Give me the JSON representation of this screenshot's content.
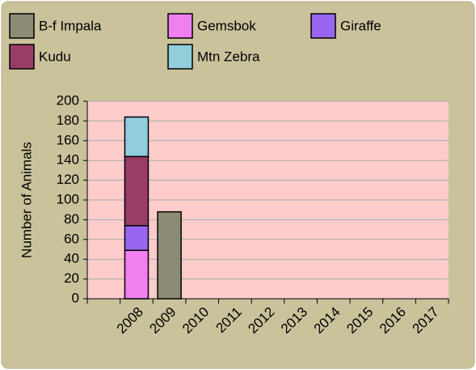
{
  "chart_data": {
    "type": "stacked_bar",
    "y_label": "Number of Animals",
    "categories": [
      null,
      "2008",
      "2009",
      "2010",
      "2011",
      "2012",
      "2013",
      "2014",
      "2015",
      "2016",
      "2017"
    ],
    "series": [
      {
        "name": "B-f Impala",
        "color": "#8c8b74",
        "values": [
          null,
          null,
          88,
          null,
          null,
          null,
          null,
          null,
          null,
          null,
          null
        ]
      },
      {
        "name": "Gemsbok",
        "color": "#f080f0",
        "values": [
          null,
          49,
          null,
          null,
          null,
          null,
          null,
          null,
          null,
          null,
          null
        ]
      },
      {
        "name": "Giraffe",
        "color": "#9966f0",
        "values": [
          null,
          25,
          null,
          null,
          null,
          null,
          null,
          null,
          null,
          null,
          null
        ]
      },
      {
        "name": "Kudu",
        "color": "#993d66",
        "values": [
          null,
          70,
          null,
          null,
          null,
          null,
          null,
          null,
          null,
          null,
          null
        ]
      },
      {
        "name": "Mtn Zebra",
        "color": "#92cddc",
        "values": [
          null,
          40,
          null,
          null,
          null,
          null,
          null,
          null,
          null,
          null,
          null
        ]
      }
    ],
    "ylim": [
      0,
      200
    ],
    "yticks": [
      0,
      20,
      40,
      60,
      80,
      100,
      120,
      140,
      160,
      180,
      200
    ],
    "grid": true
  }
}
